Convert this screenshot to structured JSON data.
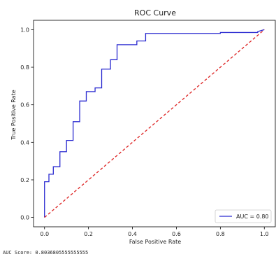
{
  "chart_data": {
    "type": "line",
    "title": "ROC Curve",
    "xlabel": "False Positive Rate",
    "ylabel": "True Positive Rate",
    "xlim": [
      -0.05,
      1.05
    ],
    "ylim": [
      -0.05,
      1.05
    ],
    "xticks": [
      0.0,
      0.2,
      0.4,
      0.6,
      0.8,
      1.0
    ],
    "yticks": [
      0.0,
      0.2,
      0.4,
      0.6,
      0.8,
      1.0
    ],
    "xtick_labels": [
      "0.0",
      "0.2",
      "0.4",
      "0.6",
      "0.8",
      "1.0"
    ],
    "ytick_labels": [
      "0.0",
      "0.2",
      "0.4",
      "0.6",
      "0.8",
      "1.0"
    ],
    "grid": false,
    "legend_position": "lower-right",
    "series": [
      {
        "name": "AUC = 0.80",
        "color": "#2a2ad0",
        "style": "solid",
        "x": [
          0.0,
          0.0,
          0.02,
          0.02,
          0.04,
          0.04,
          0.07,
          0.07,
          0.1,
          0.1,
          0.13,
          0.13,
          0.16,
          0.16,
          0.19,
          0.19,
          0.23,
          0.23,
          0.26,
          0.26,
          0.3,
          0.3,
          0.33,
          0.33,
          0.36,
          0.36,
          0.42,
          0.42,
          0.46,
          0.46,
          0.8,
          0.8,
          0.97,
          0.97,
          1.0
        ],
        "y": [
          0.0,
          0.19,
          0.19,
          0.23,
          0.23,
          0.27,
          0.27,
          0.35,
          0.35,
          0.41,
          0.41,
          0.51,
          0.51,
          0.62,
          0.62,
          0.67,
          0.67,
          0.69,
          0.69,
          0.79,
          0.79,
          0.84,
          0.84,
          0.92,
          0.92,
          0.92,
          0.92,
          0.94,
          0.94,
          0.98,
          0.98,
          0.985,
          0.985,
          0.99,
          1.0
        ]
      },
      {
        "color": "#dd2222",
        "style": "dashed",
        "x": [
          0.0,
          1.0
        ],
        "y": [
          0.0,
          1.0
        ]
      }
    ]
  },
  "output": {
    "score_text": "AUC Score: 0.8036805555555555"
  }
}
